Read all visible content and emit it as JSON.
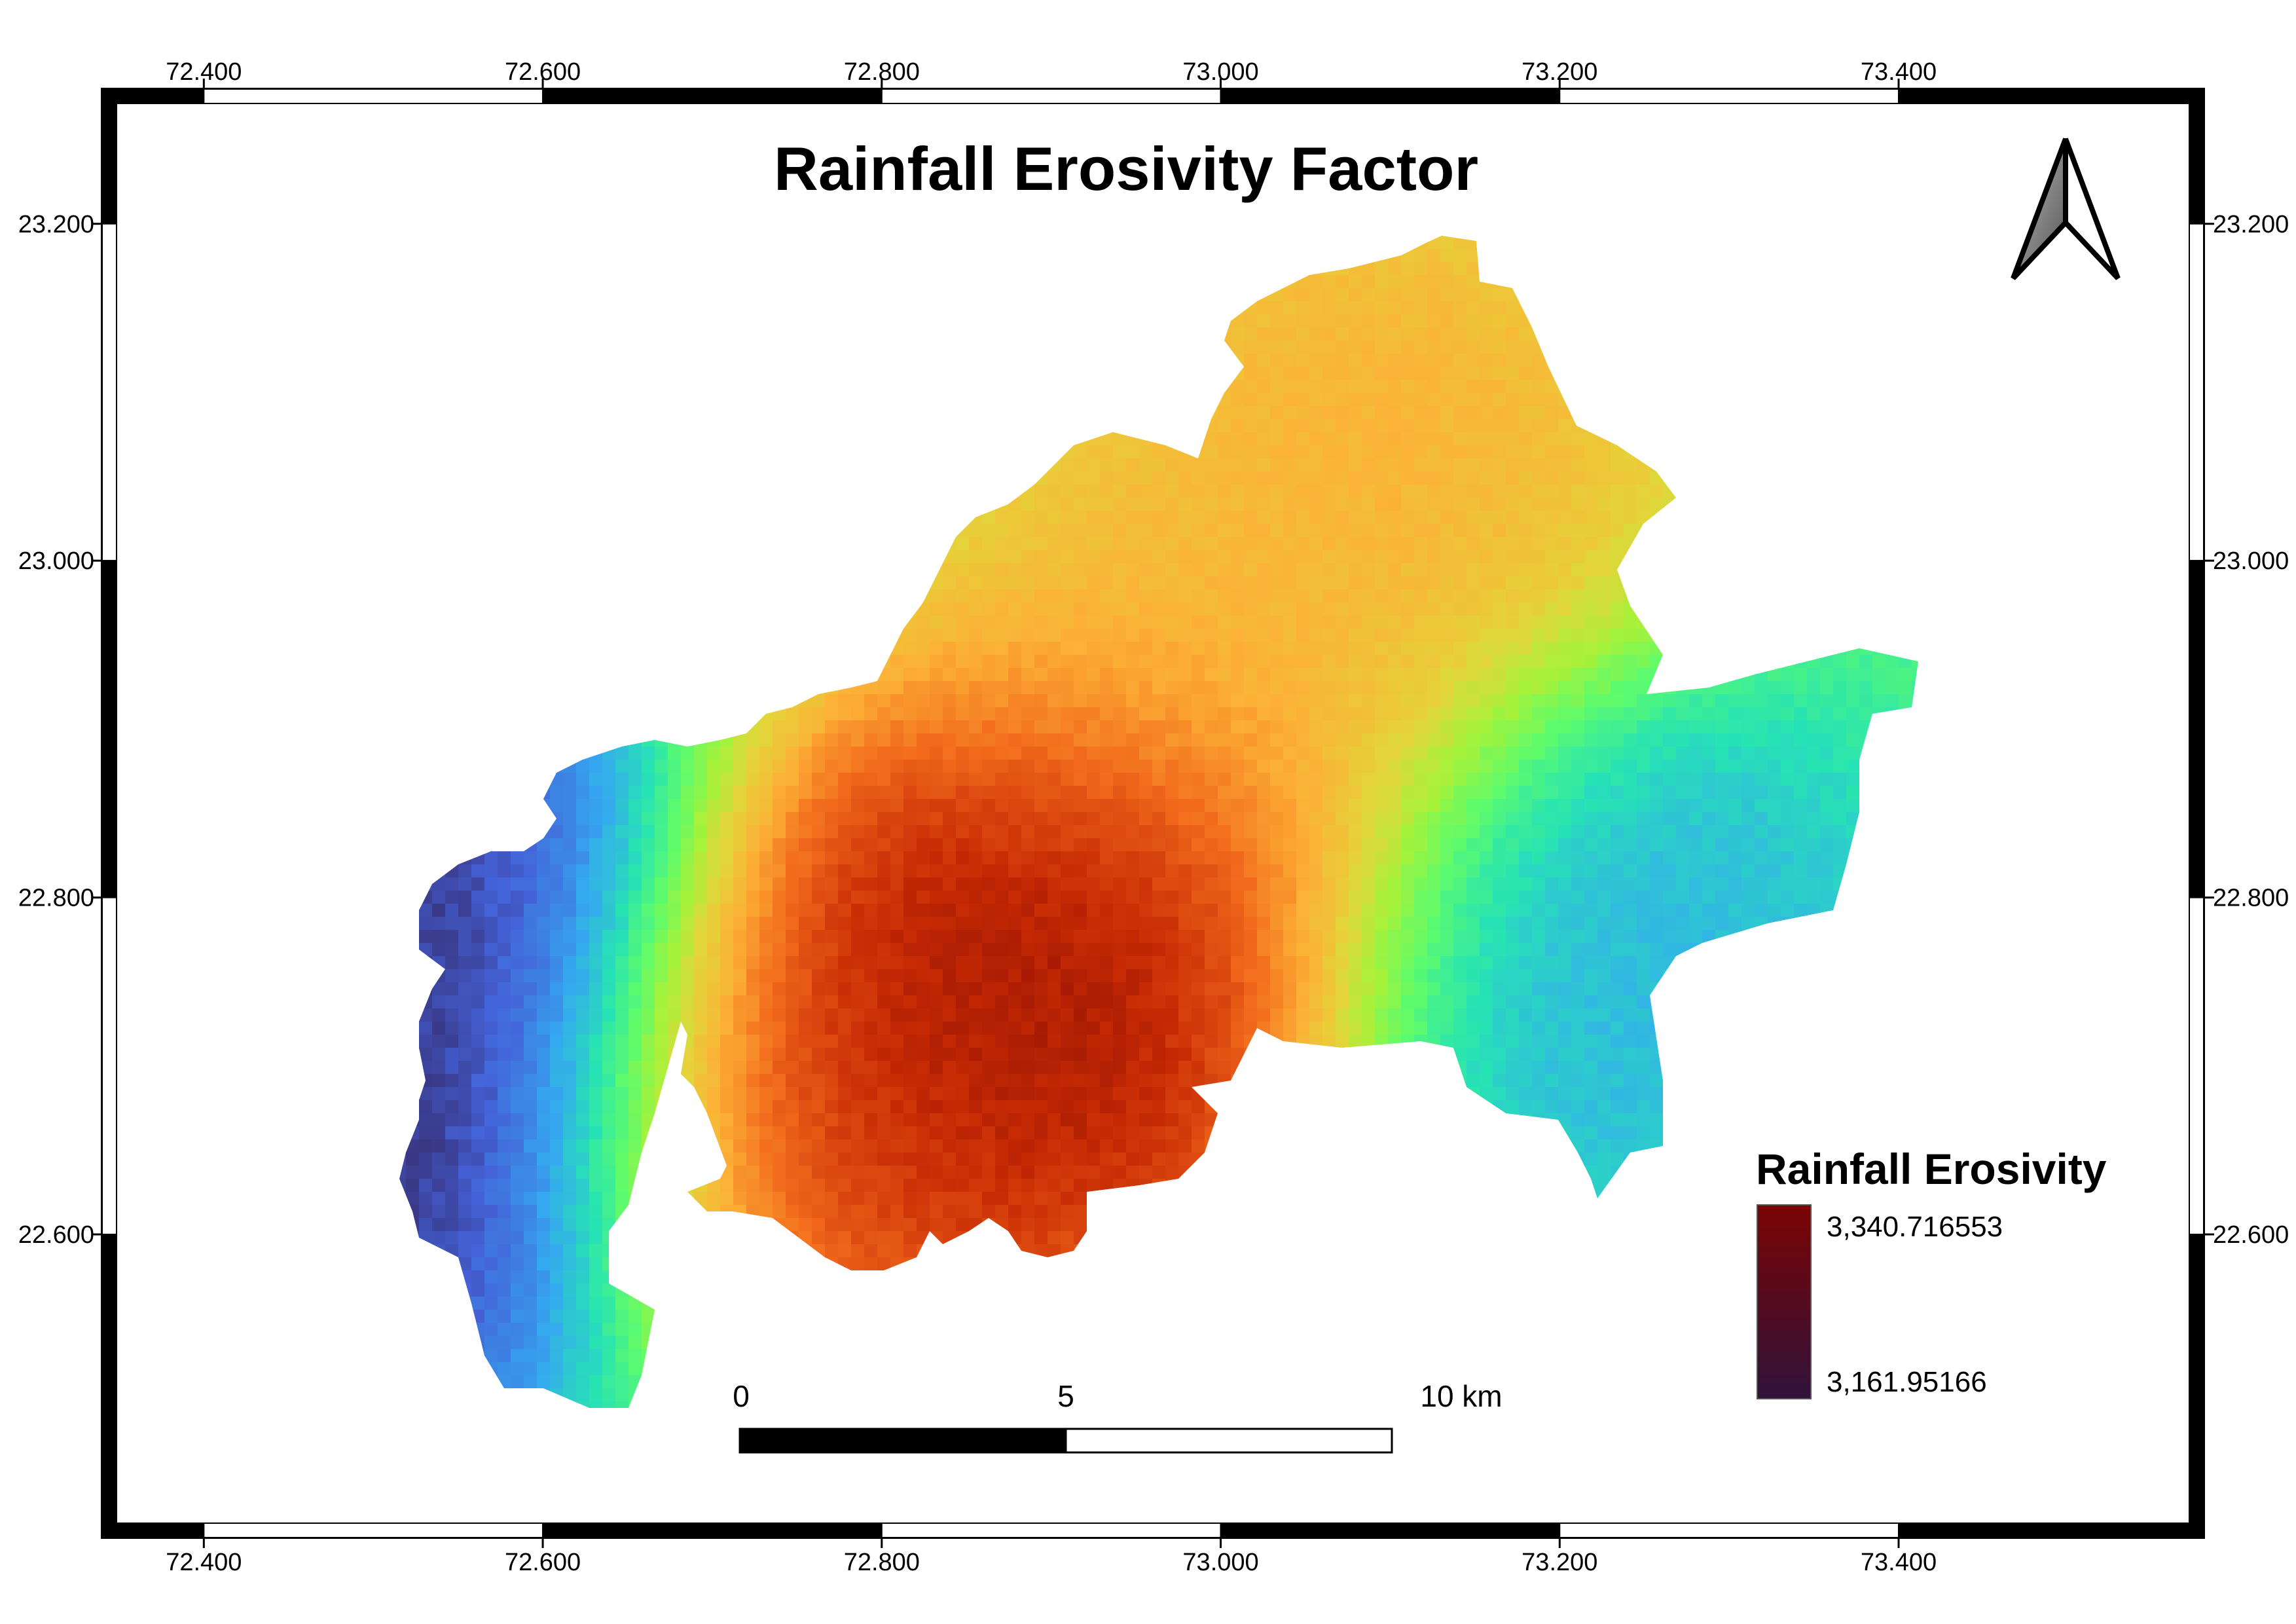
{
  "map": {
    "title": "Rainfall Erosivity Factor",
    "frame": {
      "lon_range": [
        72.34,
        73.58
      ],
      "lat_range": [
        22.42,
        23.28
      ]
    },
    "longitude_ticks": [
      {
        "value": 72.4,
        "label": "72.400"
      },
      {
        "value": 72.6,
        "label": "72.600"
      },
      {
        "value": 72.8,
        "label": "72.800"
      },
      {
        "value": 73.0,
        "label": "73.000"
      },
      {
        "value": 73.2,
        "label": "73.200"
      },
      {
        "value": 73.4,
        "label": "73.400"
      }
    ],
    "latitude_ticks": [
      {
        "value": 23.2,
        "label": "23.200"
      },
      {
        "value": 23.0,
        "label": "23.000"
      },
      {
        "value": 22.8,
        "label": "22.800"
      },
      {
        "value": 22.6,
        "label": "22.600"
      }
    ],
    "north_arrow": {
      "icon": "north-arrow-icon"
    },
    "legend": {
      "title": "Rainfall Erosivity",
      "max_label": "3,340.716553",
      "min_label": "3,161.95166",
      "ramp": [
        "#7a0403",
        "#c62a04",
        "#f26a1c",
        "#fcb036",
        "#e5d33a",
        "#a6f23a",
        "#5dfb6d",
        "#27e3b4",
        "#35a9f0",
        "#4462d8",
        "#30123b"
      ]
    },
    "scale_bar": {
      "labels": [
        "0",
        "5",
        "10 km"
      ],
      "distances_km": [
        0,
        5,
        10
      ]
    },
    "surface": {
      "value_range": [
        3161.95166,
        3340.716553
      ],
      "hotspots": [
        {
          "lon": 72.86,
          "lat": 22.72,
          "value": 3340.7
        },
        {
          "lon": 72.93,
          "lat": 22.79,
          "value": 3335.0
        },
        {
          "lon": 72.78,
          "lat": 22.66,
          "value": 3318.0
        },
        {
          "lon": 73.09,
          "lat": 23.08,
          "value": 3290.0
        },
        {
          "lon": 72.99,
          "lat": 22.93,
          "value": 3285.0
        }
      ],
      "coldspots": [
        {
          "lon": 72.52,
          "lat": 22.64,
          "value": 3162.0
        },
        {
          "lon": 72.52,
          "lat": 22.77,
          "value": 3166.0
        },
        {
          "lon": 73.21,
          "lat": 22.76,
          "value": 3200.0
        }
      ]
    }
  }
}
